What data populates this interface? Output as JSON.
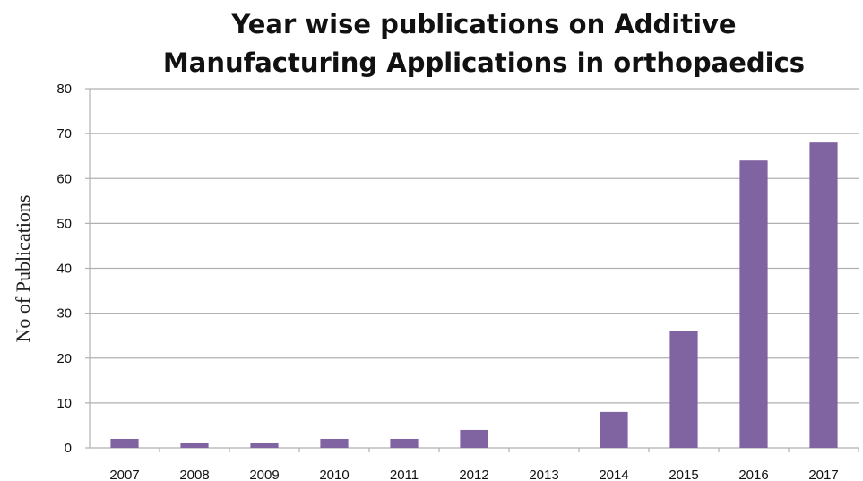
{
  "chart_data": {
    "type": "bar",
    "title_lines": [
      "Year wise publications on Additive",
      "Manufacturing Applications in orthopaedics"
    ],
    "xlabel": "",
    "ylabel": "No of Publications",
    "categories": [
      "2007",
      "2008",
      "2009",
      "2010",
      "2011",
      "2012",
      "2013",
      "2014",
      "2015",
      "2016",
      "2017"
    ],
    "values": [
      2,
      1,
      1,
      2,
      2,
      4,
      0,
      8,
      26,
      64,
      68
    ],
    "ylim": [
      0,
      80
    ],
    "yticks": [
      "0",
      "10",
      "20",
      "30",
      "40",
      "50",
      "60",
      "70",
      "80"
    ],
    "grid": true,
    "legend": "none",
    "bar_color": "#8064a2",
    "grid_color": "#b0b0b0"
  }
}
